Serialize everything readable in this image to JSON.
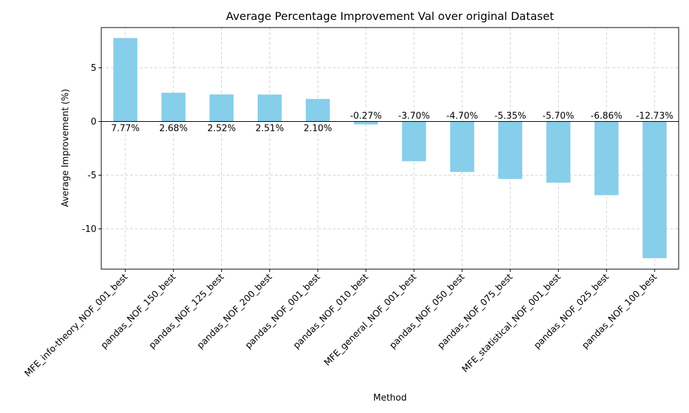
{
  "chart_data": {
    "type": "bar",
    "title": "Average Percentage Improvement Val over original Dataset",
    "xlabel": "Method",
    "ylabel": "Average Improvement (%)",
    "ylim": [
      -13.75,
      8.75
    ],
    "yticks": [
      -10,
      -5,
      0,
      5
    ],
    "grid": true,
    "bar_color": "#87ceeb",
    "categories": [
      "MFE_info-theory_NOF_001_best",
      "pandas_NOF_150_best",
      "pandas_NOF_125_best",
      "pandas_NOF_200_best",
      "pandas_NOF_001_best",
      "pandas_NOF_010_best",
      "MFE_general_NOF_001_best",
      "pandas_NOF_050_best",
      "pandas_NOF_075_best",
      "MFE_statistical_NOF_001_best",
      "pandas_NOF_025_best",
      "pandas_NOF_100_best"
    ],
    "values": [
      7.77,
      2.68,
      2.52,
      2.51,
      2.1,
      -0.27,
      -3.7,
      -4.7,
      -5.35,
      -5.7,
      -6.86,
      -12.73
    ],
    "data_labels": [
      "7.77%",
      "2.68%",
      "2.52%",
      "2.51%",
      "2.10%",
      "-0.27%",
      "-3.70%",
      "-4.70%",
      "-5.35%",
      "-5.70%",
      "-6.86%",
      "-12.73%"
    ]
  }
}
